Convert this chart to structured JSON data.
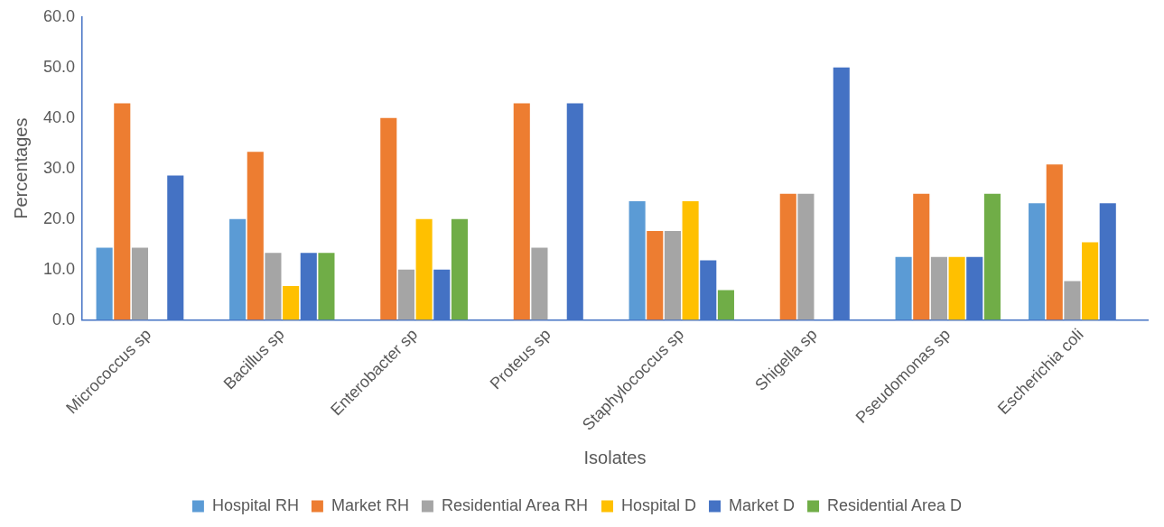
{
  "chart_data": {
    "type": "bar",
    "xlabel": "Isolates",
    "ylabel": "Percentages",
    "categories": [
      "Micrococcus sp",
      "Bacillus sp",
      "Enterobacter sp",
      "Proteus sp",
      "Staphylococcus sp",
      "Shigella sp",
      "Pseudomonas sp",
      "Escherichia coli"
    ],
    "series": [
      {
        "name": "Hospital RH",
        "color": "#5b9bd5",
        "values": [
          14.3,
          20.0,
          0,
          0,
          23.5,
          0,
          12.5,
          23.1
        ]
      },
      {
        "name": "Market RH",
        "color": "#ed7d31",
        "values": [
          42.9,
          33.3,
          40.0,
          42.9,
          17.6,
          25.0,
          25.0,
          30.8
        ]
      },
      {
        "name": "Residential Area RH",
        "color": "#a5a5a5",
        "values": [
          14.3,
          13.3,
          10.0,
          14.3,
          17.6,
          25.0,
          12.5,
          7.7
        ]
      },
      {
        "name": "Hospital D",
        "color": "#ffc000",
        "values": [
          0,
          6.7,
          20.0,
          0,
          23.5,
          0,
          12.5,
          15.4
        ]
      },
      {
        "name": "Market D",
        "color": "#4472c4",
        "values": [
          28.6,
          13.3,
          10.0,
          42.9,
          11.8,
          50.0,
          12.5,
          23.1
        ]
      },
      {
        "name": "Residential Area D",
        "color": "#70ad47",
        "values": [
          0,
          13.3,
          20.0,
          0,
          5.9,
          0,
          25.0,
          0
        ]
      }
    ],
    "ylim": [
      0,
      60
    ],
    "yticks": [
      {
        "value": 0,
        "label": "0.0"
      },
      {
        "value": 10,
        "label": "10.0"
      },
      {
        "value": 20,
        "label": "20.0"
      },
      {
        "value": 30,
        "label": "30.0"
      },
      {
        "value": 40,
        "label": "40.0"
      },
      {
        "value": 50,
        "label": "50.0"
      },
      {
        "value": 60,
        "label": "60.0"
      }
    ],
    "grid": false,
    "legend": "bottom"
  }
}
